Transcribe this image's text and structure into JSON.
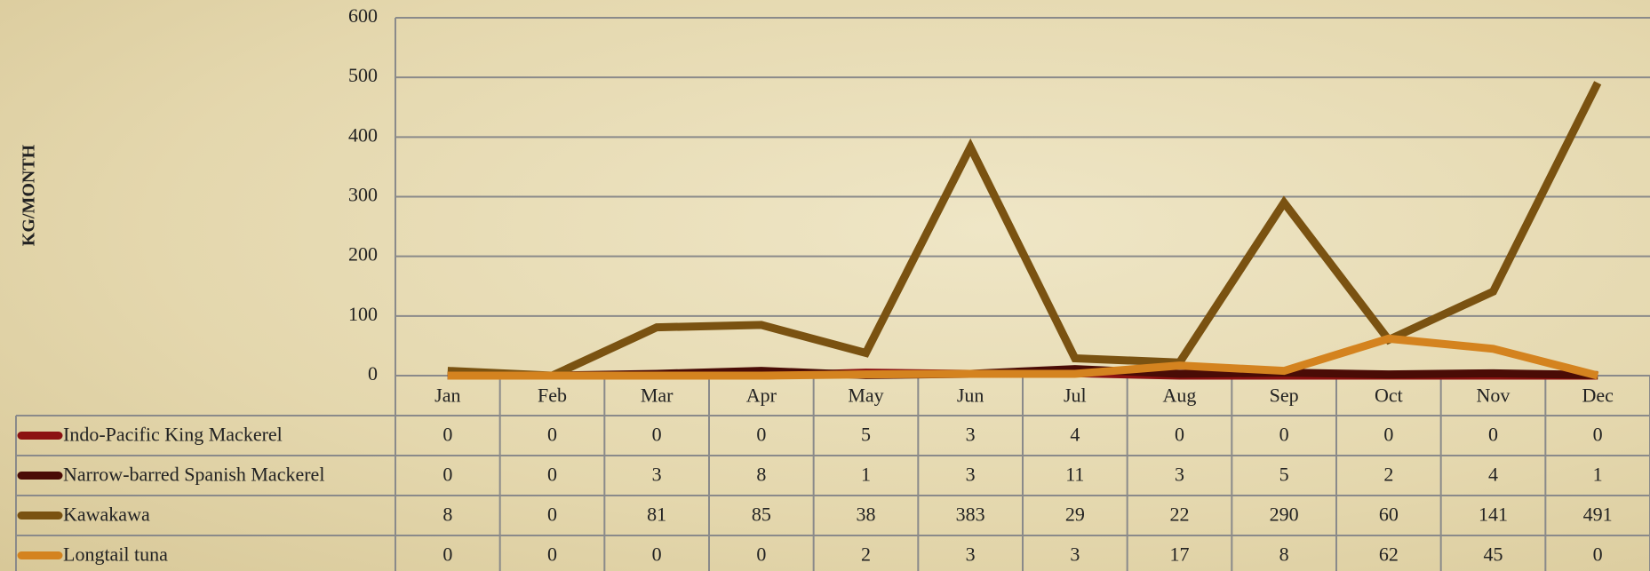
{
  "chart_data": {
    "type": "line",
    "ylabel": "KG/MONTH",
    "categories": [
      "Jan",
      "Feb",
      "Mar",
      "Apr",
      "May",
      "Jun",
      "Jul",
      "Aug",
      "Sep",
      "Oct",
      "Nov",
      "Dec"
    ],
    "series": [
      {
        "name": "Indo-Pacific King Mackerel",
        "color": "#8c1212",
        "values": [
          0,
          0,
          0,
          0,
          5,
          3,
          4,
          0,
          0,
          0,
          0,
          0
        ]
      },
      {
        "name": "Narrow-barred Spanish Mackerel",
        "color": "#4a0c06",
        "values": [
          0,
          0,
          3,
          8,
          1,
          3,
          11,
          3,
          5,
          2,
          4,
          1
        ]
      },
      {
        "name": "Kawakawa",
        "color": "#7a5211",
        "values": [
          8,
          0,
          81,
          85,
          38,
          383,
          29,
          22,
          290,
          60,
          141,
          491
        ]
      },
      {
        "name": "Longtail tuna",
        "color": "#d4831f",
        "values": [
          0,
          0,
          0,
          0,
          2,
          3,
          3,
          17,
          8,
          62,
          45,
          0
        ]
      }
    ],
    "ylim": [
      0,
      600
    ],
    "yticks": [
      0,
      100,
      200,
      300,
      400,
      500,
      600
    ],
    "grid": true
  }
}
